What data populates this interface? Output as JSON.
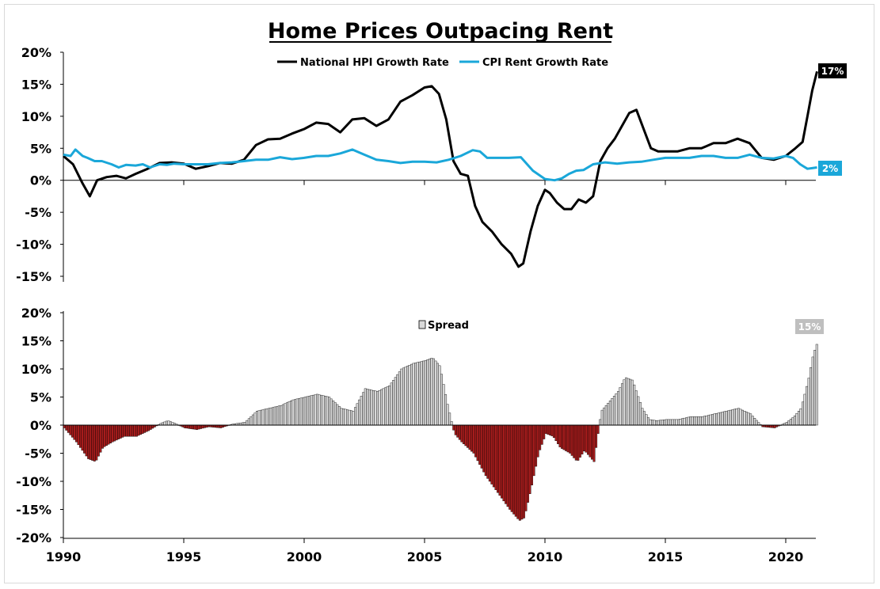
{
  "chart_data": [
    {
      "type": "line",
      "title": "Home Prices Outpacing Rent",
      "ylim": [
        -15,
        20
      ],
      "y_ticks": [
        "20%",
        "15%",
        "10%",
        "5%",
        "0%",
        "-5%",
        "-10%",
        "-15%"
      ],
      "grid": false,
      "legend_position": "top-center",
      "series": [
        {
          "name": "National HPI Growth Rate",
          "color": "#000000",
          "end_label": "17%",
          "x": [
            1990.0,
            1990.4,
            1990.8,
            1991.1,
            1991.4,
            1991.8,
            1992.2,
            1992.6,
            1993.0,
            1993.5,
            1994.0,
            1994.5,
            1995.0,
            1995.5,
            1996.0,
            1996.5,
            1997.0,
            1997.5,
            1998.0,
            1998.5,
            1999.0,
            1999.5,
            2000.0,
            2000.5,
            2001.0,
            2001.5,
            2002.0,
            2002.5,
            2003.0,
            2003.5,
            2004.0,
            2004.5,
            2005.0,
            2005.3,
            2005.6,
            2005.9,
            2006.2,
            2006.5,
            2006.8,
            2007.1,
            2007.4,
            2007.8,
            2008.2,
            2008.6,
            2008.9,
            2009.1,
            2009.4,
            2009.7,
            2010.0,
            2010.2,
            2010.5,
            2010.8,
            2011.1,
            2011.4,
            2011.7,
            2012.0,
            2012.3,
            2012.6,
            2012.9,
            2013.2,
            2013.5,
            2013.8,
            2014.1,
            2014.4,
            2014.7,
            2015.0,
            2015.5,
            2016.0,
            2016.5,
            2017.0,
            2017.5,
            2018.0,
            2018.5,
            2019.0,
            2019.5,
            2020.0,
            2020.4,
            2020.7,
            2020.9,
            2021.1,
            2021.3
          ],
          "values": [
            3.8,
            2.5,
            -0.5,
            -2.5,
            0.0,
            0.5,
            0.7,
            0.3,
            1.0,
            1.8,
            2.7,
            2.8,
            2.6,
            1.8,
            2.2,
            2.7,
            2.6,
            3.2,
            5.5,
            6.4,
            6.5,
            7.3,
            8.0,
            9.0,
            8.8,
            7.5,
            9.5,
            9.7,
            8.5,
            9.5,
            12.3,
            13.3,
            14.5,
            14.7,
            13.5,
            9.5,
            3.0,
            1.0,
            0.7,
            -4.0,
            -6.5,
            -8.0,
            -10.0,
            -11.5,
            -13.5,
            -13.0,
            -8.0,
            -4.0,
            -1.5,
            -2.0,
            -3.5,
            -4.5,
            -4.5,
            -3.0,
            -3.5,
            -2.5,
            3.0,
            5.0,
            6.5,
            8.5,
            10.5,
            11.0,
            8.0,
            5.0,
            4.5,
            4.5,
            4.5,
            5.0,
            5.0,
            5.8,
            5.8,
            6.5,
            5.8,
            3.5,
            3.2,
            3.8,
            5.0,
            6.0,
            10.0,
            14.0,
            17.0
          ]
        },
        {
          "name": "CPI Rent Growth Rate",
          "color": "#1aa7d9",
          "end_label": "2%",
          "x": [
            1990.0,
            1990.3,
            1990.5,
            1990.8,
            1991.0,
            1991.3,
            1991.6,
            1992.0,
            1992.3,
            1992.6,
            1993.0,
            1993.3,
            1993.6,
            1994.0,
            1994.3,
            1994.6,
            1995.0,
            1995.5,
            1996.0,
            1996.5,
            1997.0,
            1997.5,
            1998.0,
            1998.5,
            1999.0,
            1999.5,
            2000.0,
            2000.5,
            2001.0,
            2001.5,
            2002.0,
            2002.5,
            2003.0,
            2003.5,
            2004.0,
            2004.5,
            2005.0,
            2005.5,
            2006.0,
            2006.5,
            2007.0,
            2007.3,
            2007.6,
            2008.0,
            2008.5,
            2009.0,
            2009.5,
            2010.0,
            2010.4,
            2010.7,
            2011.0,
            2011.3,
            2011.6,
            2012.0,
            2012.5,
            2013.0,
            2013.5,
            2014.0,
            2014.5,
            2015.0,
            2015.5,
            2016.0,
            2016.5,
            2017.0,
            2017.5,
            2018.0,
            2018.5,
            2019.0,
            2019.5,
            2020.0,
            2020.3,
            2020.6,
            2020.9,
            2021.1,
            2021.3
          ],
          "values": [
            4.0,
            3.8,
            4.8,
            3.8,
            3.5,
            3.0,
            3.0,
            2.5,
            2.0,
            2.4,
            2.3,
            2.5,
            2.0,
            2.5,
            2.4,
            2.6,
            2.5,
            2.5,
            2.5,
            2.7,
            2.8,
            3.0,
            3.2,
            3.2,
            3.6,
            3.3,
            3.5,
            3.8,
            3.8,
            4.2,
            4.8,
            4.0,
            3.2,
            3.0,
            2.7,
            2.9,
            2.9,
            2.8,
            3.2,
            3.8,
            4.7,
            4.5,
            3.5,
            3.5,
            3.5,
            3.6,
            1.5,
            0.2,
            0.0,
            0.3,
            1.0,
            1.5,
            1.6,
            2.5,
            2.8,
            2.6,
            2.8,
            2.9,
            3.2,
            3.5,
            3.5,
            3.5,
            3.8,
            3.8,
            3.5,
            3.5,
            4.0,
            3.5,
            3.4,
            3.8,
            3.5,
            2.5,
            1.8,
            1.9,
            2.0
          ]
        }
      ]
    },
    {
      "type": "bar",
      "ylim": [
        -20,
        20
      ],
      "y_ticks": [
        "20%",
        "15%",
        "10%",
        "5%",
        "0%",
        "-5%",
        "-10%",
        "-15%",
        "-20%"
      ],
      "x_ticks": [
        "1990",
        "1995",
        "2000",
        "2005",
        "2010",
        "2015",
        "2020"
      ],
      "grid": false,
      "legend_position": "top-center",
      "series": [
        {
          "name": "Spread",
          "positive_color": "#d9d9d9",
          "negative_color": "#a61c1c",
          "end_label": "15%",
          "x": [
            1990.0,
            1990.5,
            1991.0,
            1991.3,
            1991.6,
            1992.0,
            1992.5,
            1993.0,
            1993.5,
            1994.0,
            1994.3,
            1994.6,
            1995.0,
            1995.5,
            1996.0,
            1996.5,
            1997.0,
            1997.5,
            1998.0,
            1998.5,
            1999.0,
            1999.5,
            2000.0,
            2000.5,
            2001.0,
            2001.5,
            2002.0,
            2002.5,
            2003.0,
            2003.5,
            2004.0,
            2004.5,
            2005.0,
            2005.3,
            2005.6,
            2005.9,
            2006.2,
            2006.5,
            2007.0,
            2007.5,
            2008.0,
            2008.5,
            2008.9,
            2009.1,
            2009.4,
            2009.7,
            2010.0,
            2010.3,
            2010.6,
            2011.0,
            2011.3,
            2011.6,
            2012.0,
            2012.3,
            2012.6,
            2013.0,
            2013.3,
            2013.6,
            2014.0,
            2014.3,
            2014.6,
            2015.0,
            2015.5,
            2016.0,
            2016.5,
            2017.0,
            2017.5,
            2018.0,
            2018.5,
            2019.0,
            2019.5,
            2020.0,
            2020.3,
            2020.6,
            2020.9,
            2021.1,
            2021.3
          ],
          "values": [
            -0.5,
            -3.0,
            -6.0,
            -6.5,
            -4.0,
            -3.0,
            -2.0,
            -2.0,
            -1.0,
            0.3,
            0.8,
            0.3,
            -0.5,
            -0.8,
            -0.3,
            -0.5,
            0.2,
            0.5,
            2.5,
            3.0,
            3.5,
            4.5,
            5.0,
            5.5,
            5.0,
            3.0,
            2.5,
            6.5,
            6.0,
            7.0,
            10.0,
            11.0,
            11.5,
            12.0,
            10.5,
            4.0,
            -1.5,
            -3.0,
            -5.0,
            -9.0,
            -12.0,
            -15.0,
            -17.0,
            -16.5,
            -11.0,
            -5.0,
            -1.5,
            -2.0,
            -4.0,
            -5.0,
            -6.5,
            -4.5,
            -6.5,
            2.5,
            4.0,
            6.0,
            8.5,
            8.0,
            3.0,
            1.0,
            0.8,
            1.0,
            1.0,
            1.5,
            1.5,
            2.0,
            2.5,
            3.0,
            2.0,
            -0.3,
            -0.5,
            0.5,
            1.5,
            3.0,
            8.0,
            12.5,
            15.0
          ]
        }
      ]
    }
  ]
}
